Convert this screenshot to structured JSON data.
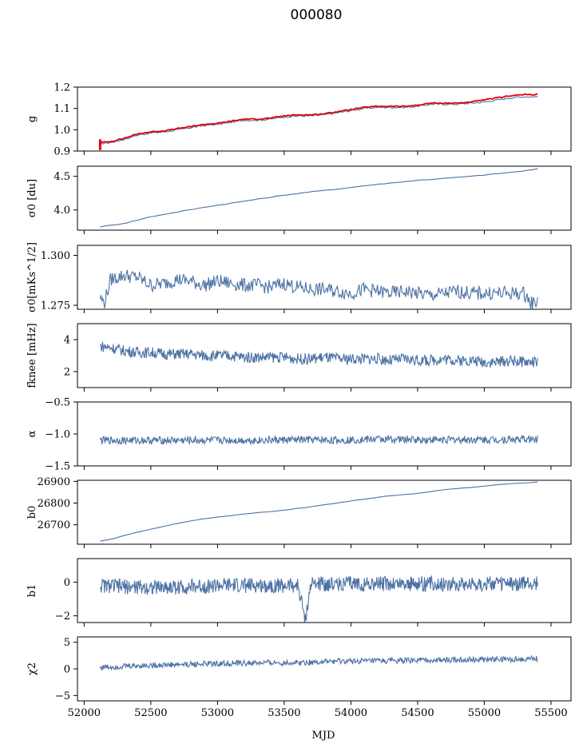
{
  "figure_title": "000080",
  "x_label": "MJD",
  "colors": {
    "series_line": "#4c72a4",
    "highlight": "#e0000b",
    "axis": "#000000"
  },
  "chart_data": [
    {
      "type": "line",
      "ylabel": "g",
      "ylim": [
        0.9,
        1.2
      ],
      "yticks": [
        0.9,
        1.0,
        1.1,
        1.2
      ],
      "ytick_labels": [
        "0.9",
        "1.0",
        "1.1",
        "1.2"
      ],
      "series": [
        {
          "color": "#4c72a4",
          "x": [
            52120,
            52200,
            52300,
            52400,
            52500,
            52600,
            52700,
            52800,
            52900,
            53000,
            53100,
            53200,
            53300,
            53400,
            53500,
            53600,
            53700,
            53800,
            53900,
            54000,
            54100,
            54200,
            54300,
            54400,
            54500,
            54600,
            54700,
            54800,
            54900,
            55000,
            55100,
            55200,
            55300,
            55400
          ],
          "y": [
            0.935,
            0.94,
            0.955,
            0.975,
            0.985,
            0.99,
            1.0,
            1.01,
            1.02,
            1.025,
            1.035,
            1.045,
            1.045,
            1.05,
            1.06,
            1.065,
            1.065,
            1.07,
            1.08,
            1.09,
            1.1,
            1.105,
            1.105,
            1.105,
            1.11,
            1.12,
            1.12,
            1.12,
            1.125,
            1.13,
            1.14,
            1.15,
            1.155,
            1.155
          ]
        },
        {
          "color": "#e0000b",
          "x": [
            52120,
            52200,
            52300,
            52400,
            52500,
            52600,
            52700,
            52800,
            52900,
            53000,
            53100,
            53200,
            53300,
            53400,
            53500,
            53600,
            53700,
            53800,
            53900,
            54000,
            54100,
            54200,
            54300,
            54400,
            54500,
            54600,
            54700,
            54800,
            54900,
            55000,
            55100,
            55200,
            55300,
            55400
          ],
          "y": [
            0.94,
            0.945,
            0.96,
            0.98,
            0.99,
            0.995,
            1.005,
            1.015,
            1.025,
            1.03,
            1.04,
            1.05,
            1.05,
            1.055,
            1.065,
            1.07,
            1.07,
            1.075,
            1.085,
            1.095,
            1.105,
            1.11,
            1.11,
            1.11,
            1.115,
            1.125,
            1.125,
            1.125,
            1.13,
            1.14,
            1.15,
            1.16,
            1.165,
            1.165
          ]
        }
      ]
    },
    {
      "type": "line",
      "ylabel": "σ0 [du]",
      "ylim": [
        3.7,
        4.65
      ],
      "yticks": [
        4.0,
        4.5
      ],
      "ytick_labels": [
        "4.0",
        "4.5"
      ],
      "series": [
        {
          "color": "#4c72a4",
          "x": [
            52120,
            52300,
            52500,
            52700,
            52900,
            53100,
            53300,
            53500,
            53700,
            53900,
            54100,
            54300,
            54500,
            54700,
            54900,
            55100,
            55300,
            55400
          ],
          "y": [
            3.75,
            3.8,
            3.9,
            3.97,
            4.04,
            4.1,
            4.16,
            4.22,
            4.27,
            4.31,
            4.36,
            4.4,
            4.44,
            4.47,
            4.5,
            4.54,
            4.58,
            4.61
          ]
        }
      ]
    },
    {
      "type": "line",
      "ylabel": "σ0[mKs^1/2]",
      "ylim": [
        1.273,
        1.305
      ],
      "yticks": [
        1.275,
        1.3
      ],
      "ytick_labels": [
        "1.275",
        "1.300"
      ],
      "series": [
        {
          "color": "#4c72a4",
          "x": [
            52120,
            52150,
            52200,
            52300,
            52400,
            52500,
            52600,
            52700,
            52800,
            52900,
            53000,
            53100,
            53200,
            53300,
            53400,
            53500,
            53600,
            53700,
            53800,
            53900,
            54000,
            54100,
            54200,
            54300,
            54400,
            54500,
            54600,
            54700,
            54800,
            54900,
            55000,
            55100,
            55200,
            55300,
            55350,
            55400
          ],
          "y": [
            1.279,
            1.276,
            1.288,
            1.29,
            1.289,
            1.285,
            1.286,
            1.288,
            1.287,
            1.285,
            1.287,
            1.286,
            1.285,
            1.285,
            1.284,
            1.286,
            1.284,
            1.283,
            1.283,
            1.282,
            1.281,
            1.283,
            1.282,
            1.281,
            1.282,
            1.281,
            1.28,
            1.281,
            1.282,
            1.281,
            1.281,
            1.281,
            1.281,
            1.281,
            1.276,
            1.277
          ]
        }
      ]
    },
    {
      "type": "line",
      "ylabel": "fknee [mHz]",
      "ylim": [
        1.0,
        5.0
      ],
      "yticks": [
        2,
        4
      ],
      "ytick_labels": [
        "2",
        "4"
      ],
      "series": [
        {
          "color": "#4c72a4",
          "x": [
            52120,
            52200,
            52300,
            52400,
            52500,
            52600,
            52700,
            52800,
            52900,
            53000,
            53100,
            53200,
            53300,
            53400,
            53500,
            53600,
            53700,
            53800,
            53900,
            54000,
            54100,
            54200,
            54300,
            54400,
            54500,
            54600,
            54700,
            54800,
            54900,
            55000,
            55100,
            55200,
            55300,
            55400
          ],
          "y": [
            3.6,
            3.5,
            3.3,
            3.2,
            3.2,
            3.1,
            3.1,
            3.1,
            3.0,
            3.0,
            3.0,
            2.9,
            2.9,
            2.9,
            2.9,
            2.8,
            2.8,
            2.9,
            2.8,
            2.8,
            2.8,
            2.8,
            2.7,
            2.8,
            2.7,
            2.7,
            2.8,
            2.7,
            2.7,
            2.6,
            2.6,
            2.7,
            2.6,
            2.6
          ]
        }
      ]
    },
    {
      "type": "line",
      "ylabel": "α",
      "ylim": [
        -1.5,
        -0.5
      ],
      "yticks": [
        -1.5,
        -1.0,
        -0.5
      ],
      "ytick_labels": [
        "−1.5",
        "−1.0",
        "−0.5"
      ],
      "series": [
        {
          "color": "#4c72a4",
          "x": [
            52120,
            52400,
            52700,
            53000,
            53300,
            53600,
            53900,
            54200,
            54500,
            54800,
            55100,
            55400
          ],
          "y": [
            -1.1,
            -1.1,
            -1.1,
            -1.1,
            -1.1,
            -1.09,
            -1.1,
            -1.08,
            -1.09,
            -1.09,
            -1.09,
            -1.08
          ]
        }
      ]
    },
    {
      "type": "line",
      "ylabel": "b0",
      "ylim": [
        26610,
        26905
      ],
      "yticks": [
        26700,
        26800,
        26900
      ],
      "ytick_labels": [
        "26700",
        "26800",
        "26900"
      ],
      "series": [
        {
          "color": "#4c72a4",
          "x": [
            52120,
            52200,
            52300,
            52400,
            52500,
            52600,
            52700,
            52800,
            52900,
            53000,
            53100,
            53200,
            53300,
            53400,
            53500,
            53600,
            53700,
            53800,
            53900,
            54000,
            54100,
            54200,
            54300,
            54400,
            54500,
            54600,
            54700,
            54800,
            54900,
            55000,
            55100,
            55200,
            55300,
            55400
          ],
          "y": [
            26625,
            26632,
            26650,
            26665,
            26680,
            26693,
            26706,
            26718,
            26727,
            26735,
            26742,
            26750,
            26756,
            26760,
            26767,
            26775,
            26783,
            26792,
            26800,
            26810,
            26818,
            26827,
            26834,
            26839,
            26845,
            26853,
            26862,
            26867,
            26872,
            26879,
            26884,
            26889,
            26893,
            26897
          ]
        }
      ]
    },
    {
      "type": "line",
      "ylabel": "b1",
      "ylim": [
        -2.4,
        1.4
      ],
      "yticks": [
        -2,
        0
      ],
      "ytick_labels": [
        "−2",
        "0"
      ],
      "series": [
        {
          "color": "#4c72a4",
          "x": [
            52120,
            52400,
            52700,
            53000,
            53300,
            53600,
            53660,
            53700,
            54000,
            54300,
            54600,
            54900,
            55200,
            55400
          ],
          "y": [
            -0.2,
            -0.3,
            -0.3,
            -0.2,
            -0.2,
            -0.2,
            -2.2,
            -0.1,
            -0.1,
            -0.1,
            -0.1,
            -0.1,
            -0.1,
            -0.1
          ]
        }
      ]
    },
    {
      "type": "line",
      "ylabel": "χ2",
      "ylim": [
        -6,
        6
      ],
      "yticks": [
        -5,
        0,
        5
      ],
      "ytick_labels": [
        "−5",
        "0",
        "5"
      ],
      "series": [
        {
          "color": "#4c72a4",
          "x": [
            52120,
            52400,
            52700,
            53000,
            53300,
            53600,
            53900,
            54200,
            54500,
            54800,
            55100,
            55400
          ],
          "y": [
            0.3,
            0.6,
            0.8,
            1.0,
            1.1,
            1.2,
            1.4,
            1.5,
            1.6,
            1.7,
            1.8,
            1.9
          ]
        }
      ]
    }
  ],
  "x_axis": {
    "range": [
      51950,
      55650
    ],
    "ticks": [
      52000,
      52500,
      53000,
      53500,
      54000,
      54500,
      55000,
      55500
    ],
    "tick_labels": [
      "52000",
      "52500",
      "53000",
      "53500",
      "54000",
      "54500",
      "55000",
      "55500"
    ]
  }
}
